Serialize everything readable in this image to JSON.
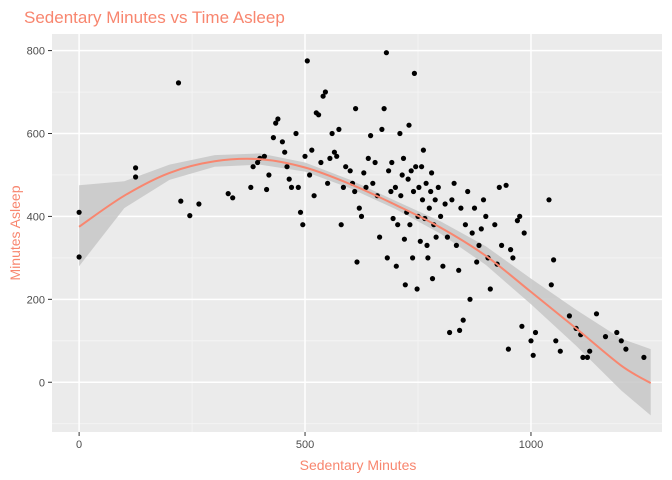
{
  "chart_data": {
    "type": "scatter",
    "title": "Sedentary Minutes vs Time Asleep",
    "xlabel": "Sedentary Minutes",
    "ylabel": "Minutes Asleep",
    "xlim": [
      -60,
      1290
    ],
    "ylim": [
      -120,
      840
    ],
    "x_ticks": [
      0,
      500,
      1000
    ],
    "y_ticks": [
      0,
      200,
      400,
      600,
      800
    ],
    "grid": true,
    "legend": "none",
    "colors": {
      "title": "#F8866F",
      "axis_label": "#F8866F",
      "panel": "#EBEBEB",
      "grid_major": "#FFFFFF",
      "grid_minor": "#F5F5F5",
      "points": "#000000",
      "trend_line": "#F8866F",
      "ribbon": "#C7C7C7",
      "tick_label": "#4D4D4D"
    },
    "trend": {
      "method": "loess",
      "x": [
        0,
        100,
        200,
        300,
        400,
        500,
        600,
        700,
        800,
        900,
        1000,
        1100,
        1200,
        1265
      ],
      "y": [
        375,
        450,
        505,
        533,
        538,
        518,
        478,
        428,
        373,
        305,
        218,
        130,
        40,
        -2
      ],
      "lower": [
        280,
        420,
        488,
        520,
        525,
        508,
        468,
        418,
        358,
        283,
        188,
        88,
        -20,
        -80
      ],
      "upper": [
        475,
        485,
        525,
        548,
        552,
        530,
        488,
        438,
        388,
        328,
        250,
        175,
        105,
        80
      ]
    },
    "points": [
      [
        0,
        410
      ],
      [
        0,
        302
      ],
      [
        125,
        517
      ],
      [
        125,
        495
      ],
      [
        220,
        722
      ],
      [
        225,
        437
      ],
      [
        245,
        402
      ],
      [
        265,
        430
      ],
      [
        330,
        455
      ],
      [
        340,
        445
      ],
      [
        380,
        470
      ],
      [
        385,
        520
      ],
      [
        395,
        530
      ],
      [
        400,
        540
      ],
      [
        410,
        545
      ],
      [
        415,
        465
      ],
      [
        420,
        500
      ],
      [
        430,
        590
      ],
      [
        435,
        625
      ],
      [
        440,
        635
      ],
      [
        450,
        580
      ],
      [
        455,
        555
      ],
      [
        460,
        520
      ],
      [
        465,
        490
      ],
      [
        470,
        470
      ],
      [
        480,
        600
      ],
      [
        485,
        470
      ],
      [
        490,
        410
      ],
      [
        495,
        380
      ],
      [
        500,
        545
      ],
      [
        505,
        775
      ],
      [
        510,
        500
      ],
      [
        515,
        560
      ],
      [
        520,
        450
      ],
      [
        525,
        650
      ],
      [
        530,
        645
      ],
      [
        535,
        530
      ],
      [
        540,
        690
      ],
      [
        545,
        700
      ],
      [
        550,
        480
      ],
      [
        555,
        540
      ],
      [
        560,
        600
      ],
      [
        565,
        555
      ],
      [
        570,
        545
      ],
      [
        575,
        610
      ],
      [
        580,
        380
      ],
      [
        585,
        470
      ],
      [
        590,
        520
      ],
      [
        600,
        510
      ],
      [
        605,
        480
      ],
      [
        610,
        460
      ],
      [
        612,
        660
      ],
      [
        615,
        290
      ],
      [
        620,
        420
      ],
      [
        625,
        400
      ],
      [
        630,
        505
      ],
      [
        635,
        470
      ],
      [
        640,
        540
      ],
      [
        645,
        595
      ],
      [
        650,
        480
      ],
      [
        655,
        530
      ],
      [
        660,
        450
      ],
      [
        665,
        350
      ],
      [
        670,
        610
      ],
      [
        675,
        660
      ],
      [
        680,
        795
      ],
      [
        682,
        300
      ],
      [
        685,
        510
      ],
      [
        690,
        460
      ],
      [
        692,
        530
      ],
      [
        695,
        395
      ],
      [
        700,
        470
      ],
      [
        702,
        280
      ],
      [
        705,
        380
      ],
      [
        710,
        600
      ],
      [
        712,
        450
      ],
      [
        715,
        500
      ],
      [
        718,
        540
      ],
      [
        720,
        345
      ],
      [
        722,
        235
      ],
      [
        725,
        410
      ],
      [
        728,
        490
      ],
      [
        730,
        620
      ],
      [
        732,
        380
      ],
      [
        735,
        510
      ],
      [
        738,
        300
      ],
      [
        740,
        460
      ],
      [
        742,
        745
      ],
      [
        745,
        520
      ],
      [
        748,
        225
      ],
      [
        750,
        400
      ],
      [
        752,
        470
      ],
      [
        755,
        340
      ],
      [
        758,
        520
      ],
      [
        760,
        440
      ],
      [
        762,
        560
      ],
      [
        765,
        395
      ],
      [
        768,
        480
      ],
      [
        770,
        330
      ],
      [
        772,
        300
      ],
      [
        775,
        420
      ],
      [
        778,
        460
      ],
      [
        780,
        505
      ],
      [
        782,
        250
      ],
      [
        785,
        380
      ],
      [
        788,
        440
      ],
      [
        790,
        350
      ],
      [
        795,
        470
      ],
      [
        800,
        400
      ],
      [
        805,
        280
      ],
      [
        810,
        430
      ],
      [
        815,
        350
      ],
      [
        820,
        120
      ],
      [
        825,
        440
      ],
      [
        830,
        480
      ],
      [
        835,
        330
      ],
      [
        840,
        270
      ],
      [
        842,
        125
      ],
      [
        845,
        420
      ],
      [
        850,
        150
      ],
      [
        855,
        380
      ],
      [
        860,
        460
      ],
      [
        865,
        200
      ],
      [
        870,
        360
      ],
      [
        875,
        420
      ],
      [
        880,
        290
      ],
      [
        885,
        330
      ],
      [
        890,
        370
      ],
      [
        895,
        440
      ],
      [
        900,
        400
      ],
      [
        905,
        300
      ],
      [
        910,
        225
      ],
      [
        920,
        380
      ],
      [
        925,
        285
      ],
      [
        930,
        470
      ],
      [
        935,
        330
      ],
      [
        945,
        475
      ],
      [
        950,
        80
      ],
      [
        955,
        320
      ],
      [
        960,
        300
      ],
      [
        970,
        390
      ],
      [
        975,
        400
      ],
      [
        980,
        135
      ],
      [
        985,
        360
      ],
      [
        1000,
        100
      ],
      [
        1005,
        65
      ],
      [
        1010,
        120
      ],
      [
        1040,
        440
      ],
      [
        1045,
        235
      ],
      [
        1050,
        295
      ],
      [
        1055,
        100
      ],
      [
        1065,
        75
      ],
      [
        1085,
        160
      ],
      [
        1100,
        130
      ],
      [
        1110,
        115
      ],
      [
        1115,
        60
      ],
      [
        1125,
        60
      ],
      [
        1130,
        75
      ],
      [
        1145,
        165
      ],
      [
        1165,
        110
      ],
      [
        1190,
        120
      ],
      [
        1200,
        100
      ],
      [
        1210,
        80
      ],
      [
        1250,
        60
      ]
    ]
  }
}
